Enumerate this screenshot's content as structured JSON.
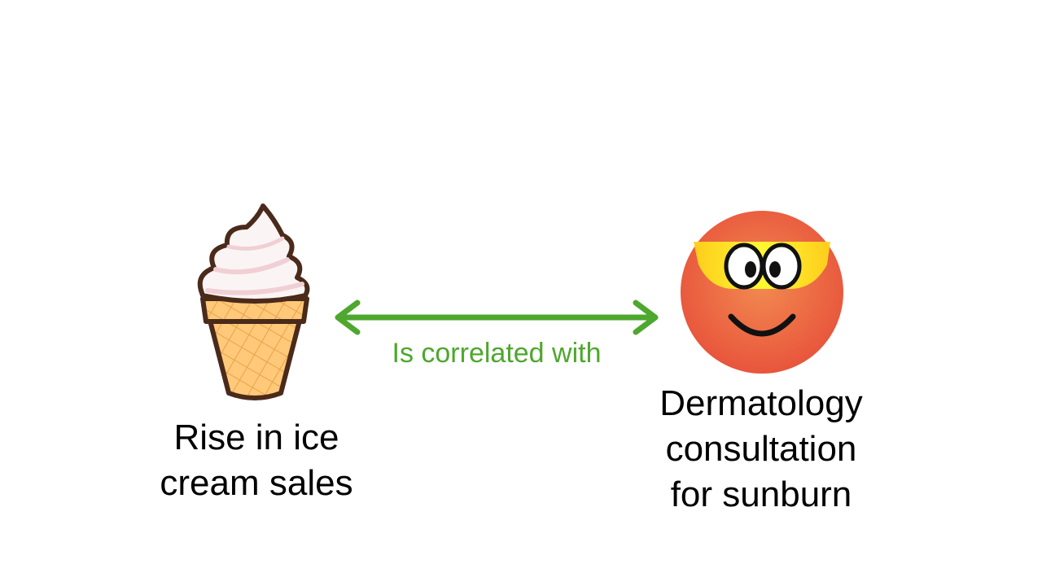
{
  "diagram": {
    "left_node": {
      "icon": "ice-cream-cone-icon",
      "label_lines": [
        "Rise in ice",
        "cream sales"
      ]
    },
    "right_node": {
      "icon": "sunburn-face-with-sunglasses-icon",
      "label_lines": [
        "Dermatology",
        "consultation",
        "for sunburn"
      ]
    },
    "relation": {
      "label": "Is correlated with",
      "direction": "bidirectional",
      "color": "#4ea72e"
    }
  }
}
